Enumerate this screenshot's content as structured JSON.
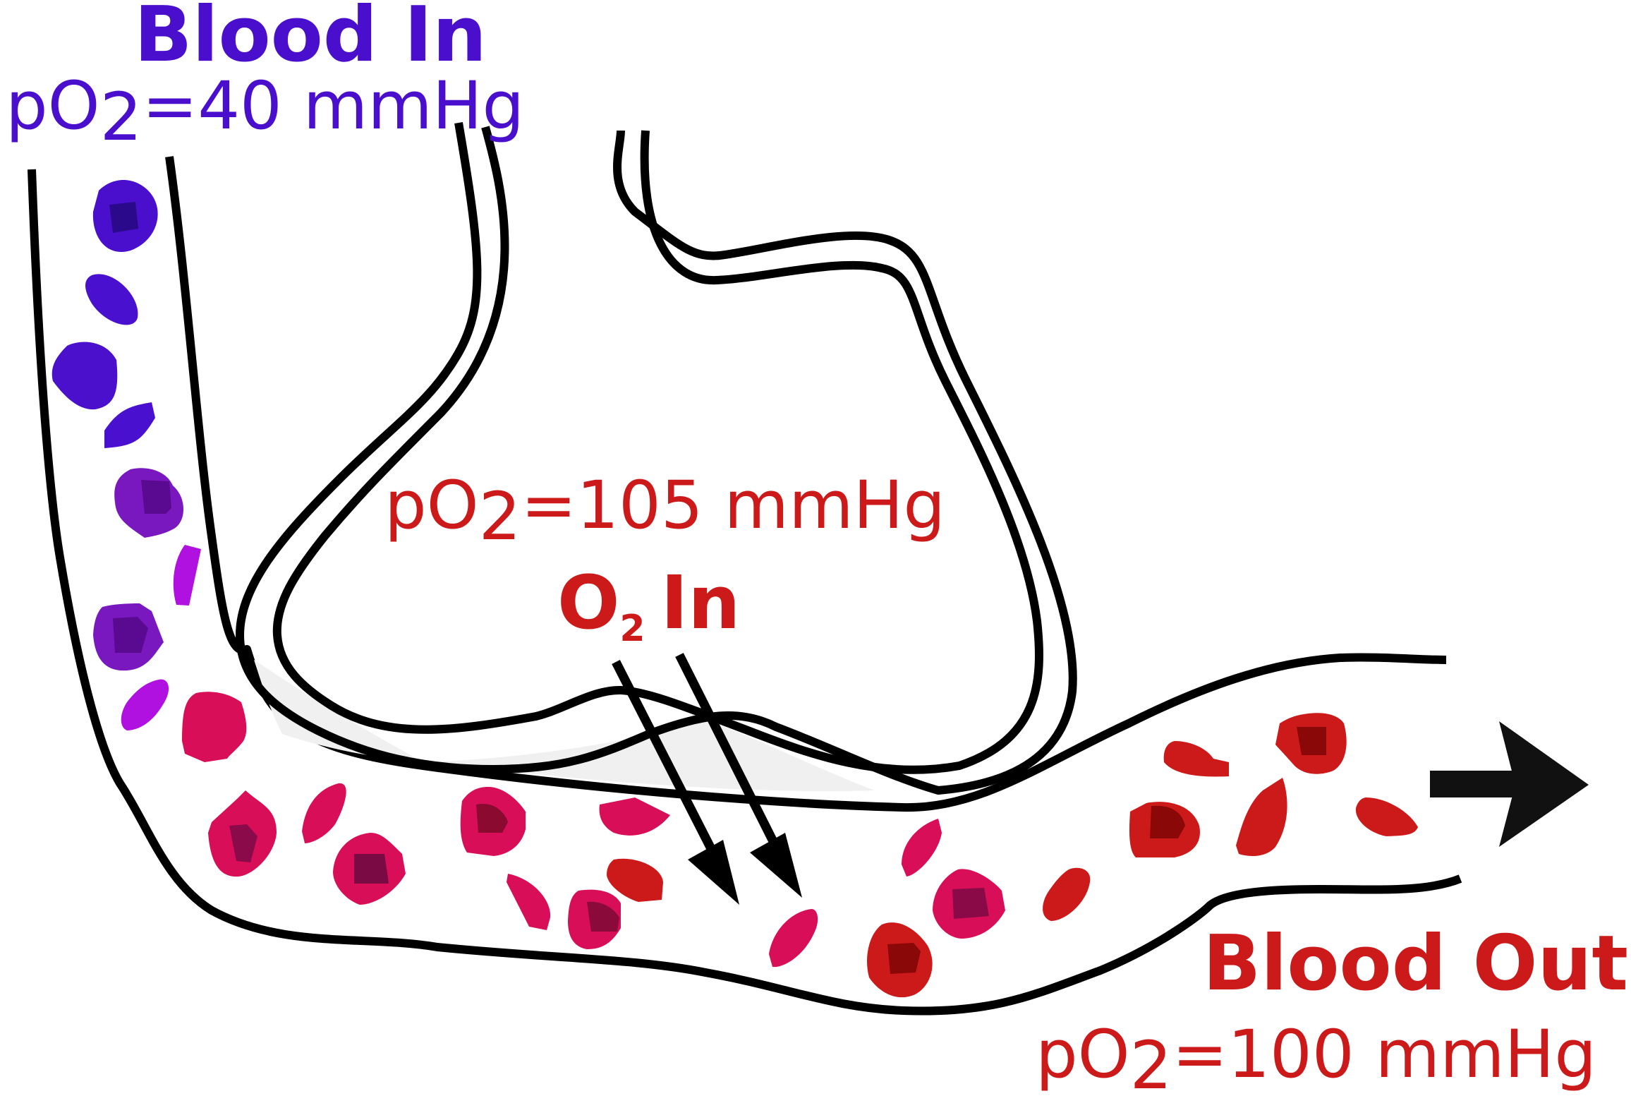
{
  "labels": {
    "blood_in": "Blood In",
    "blood_in_po2_prefix": "pO",
    "blood_in_po2_sub": "2",
    "blood_in_po2_value": "=40 mmHg",
    "alveolus_po2_prefix": "pO",
    "alveolus_po2_sub": "2",
    "alveolus_po2_value": "=105 mmHg",
    "o2_in_o": "O",
    "o2_in_sub": "2",
    "o2_in_word": "In",
    "blood_out": "Blood Out",
    "blood_out_po2_prefix": "pO",
    "blood_out_po2_sub": "2",
    "blood_out_po2_value": "=100 mmHg"
  },
  "colors": {
    "deoxygenated": "#4a0fcc",
    "oxygenated": "#cc1a1a",
    "outline": "#000000",
    "flow_arrow": "#111111"
  },
  "icons": {
    "flow_arrow": "right-arrow-icon",
    "diffusion_arrows": "down-right-arrow-icon"
  }
}
